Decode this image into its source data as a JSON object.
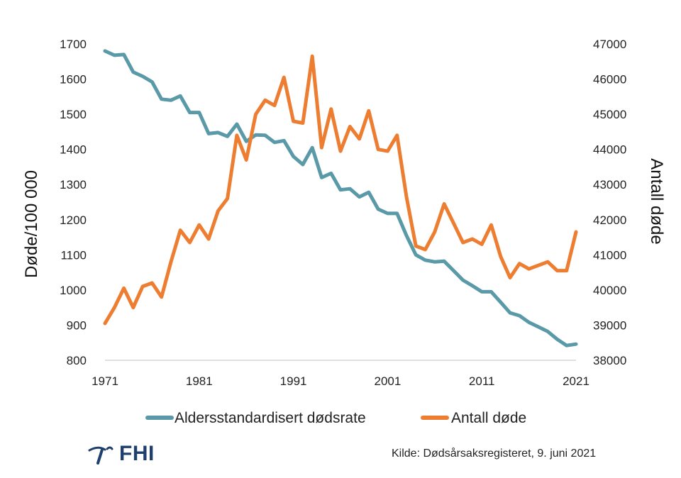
{
  "chart_data": {
    "type": "line",
    "x": [
      1971,
      1972,
      1973,
      1974,
      1975,
      1976,
      1977,
      1978,
      1979,
      1980,
      1981,
      1982,
      1983,
      1984,
      1985,
      1986,
      1987,
      1988,
      1989,
      1990,
      1991,
      1992,
      1993,
      1994,
      1995,
      1996,
      1997,
      1998,
      1999,
      2000,
      2001,
      2002,
      2003,
      2004,
      2005,
      2006,
      2007,
      2008,
      2009,
      2010,
      2011,
      2012,
      2013,
      2014,
      2015,
      2016,
      2017,
      2018,
      2019,
      2020,
      2021
    ],
    "xticks": [
      "1971",
      "1981",
      "1991",
      "2001",
      "2011",
      "2021"
    ],
    "ylabel": "Døde/100 000",
    "y2label": "Antall døde",
    "ylim": [
      800,
      1700
    ],
    "y2lim": [
      38000,
      47000
    ],
    "yticks": [
      "800",
      "900",
      "1000",
      "1100",
      "1200",
      "1300",
      "1400",
      "1500",
      "1600",
      "1700"
    ],
    "y2ticks": [
      "38000",
      "39000",
      "40000",
      "41000",
      "42000",
      "43000",
      "44000",
      "45000",
      "46000",
      "47000"
    ],
    "series": [
      {
        "name": "Aldersstandardisert dødsrate",
        "axis": "left",
        "color": "#5a9aa8",
        "values": [
          1680,
          1668,
          1670,
          1620,
          1608,
          1592,
          1543,
          1540,
          1552,
          1505,
          1505,
          1445,
          1448,
          1437,
          1472,
          1423,
          1441,
          1440,
          1420,
          1425,
          1380,
          1357,
          1405,
          1320,
          1332,
          1285,
          1288,
          1265,
          1278,
          1230,
          1218,
          1218,
          1155,
          1100,
          1085,
          1080,
          1082,
          1055,
          1028,
          1012,
          995,
          995,
          965,
          935,
          927,
          908,
          895,
          882,
          860,
          842,
          846
        ]
      },
      {
        "name": "Antall døde",
        "axis": "right",
        "color": "#ed7d31",
        "values": [
          39050,
          39500,
          40050,
          39500,
          40100,
          40200,
          39800,
          40800,
          41700,
          41350,
          41850,
          41450,
          42250,
          42600,
          44400,
          43700,
          45000,
          45400,
          45250,
          46050,
          44800,
          44750,
          46650,
          44050,
          45150,
          43950,
          44650,
          44300,
          45100,
          44000,
          43950,
          44400,
          42650,
          41250,
          41150,
          41650,
          42450,
          41900,
          41350,
          41450,
          41300,
          41850,
          40950,
          40350,
          40750,
          40600,
          40700,
          40800,
          40550,
          40550,
          41650
        ]
      }
    ],
    "legend_position": "bottom"
  },
  "source": "Kilde: Dødsårsaksregisteret, 9. juni 2021",
  "logo": {
    "text": "FHI",
    "color": "#1f3f6e"
  }
}
